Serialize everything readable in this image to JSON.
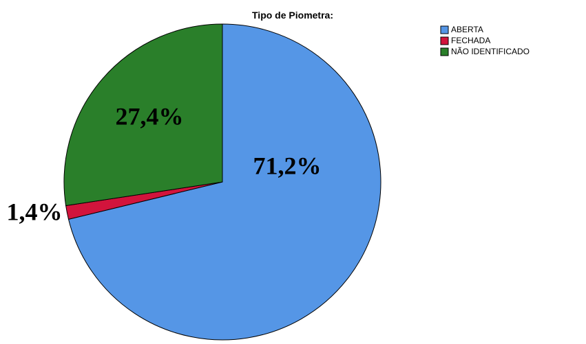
{
  "chart_data": {
    "type": "pie",
    "title": "Tipo de Piometra:",
    "categories": [
      "ABERTA",
      "FECHADA",
      "NÃO IDENTIFICADO"
    ],
    "values": [
      71.2,
      1.4,
      27.4
    ],
    "value_labels": [
      "71,2%",
      "1,4%",
      "27,4%"
    ],
    "colors": [
      "#5596e6",
      "#d2143c",
      "#2a7f2a"
    ],
    "legend": "top-right"
  }
}
